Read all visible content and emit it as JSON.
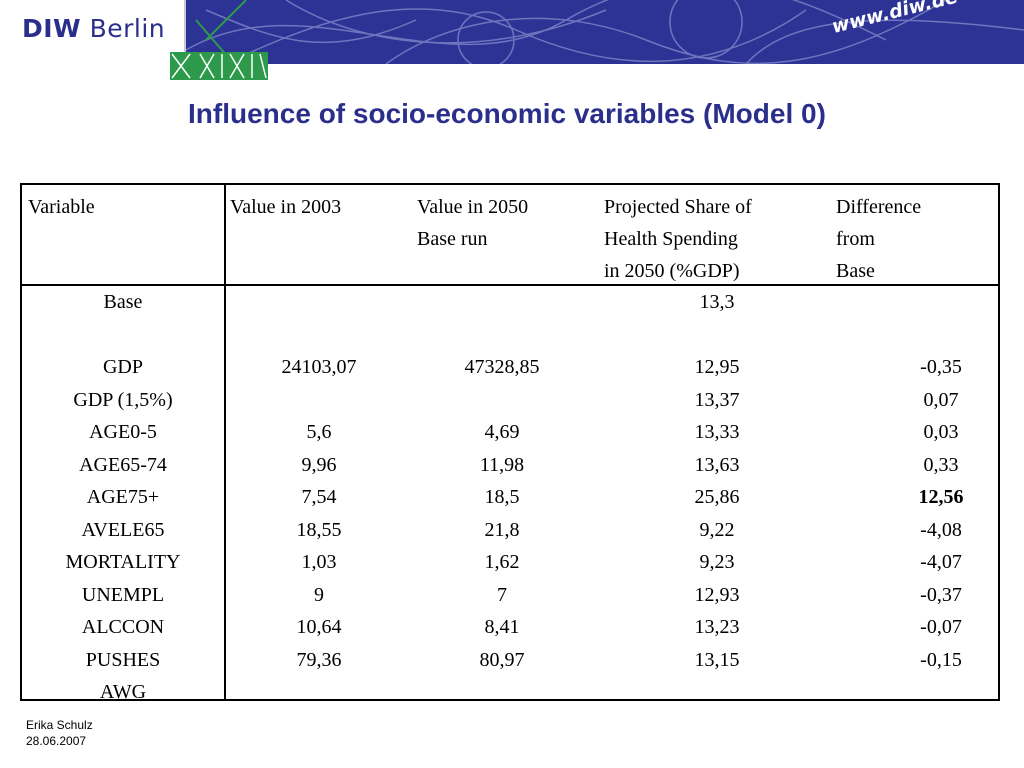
{
  "header": {
    "logo_bold": "DIW",
    "logo_rest": " Berlin",
    "url": "www.diw.de",
    "banner_color": "#2d3395",
    "green_color": "#2d9a4b"
  },
  "title": "Influence of socio-economic variables (Model 0)",
  "table": {
    "columns": [
      [
        "Variable"
      ],
      [
        "Value in 2003"
      ],
      [
        "Value in 2050",
        "Base run"
      ],
      [
        "Projected Share of",
        "Health Spending",
        "in 2050 (%GDP)"
      ],
      [
        "Difference",
        "from",
        "Base"
      ]
    ],
    "rows": [
      {
        "variable": "Base",
        "v2003": "",
        "v2050": "",
        "share": "13,3",
        "diff": ""
      },
      {
        "variable": "",
        "v2003": "",
        "v2050": "",
        "share": "",
        "diff": ""
      },
      {
        "variable": "GDP",
        "v2003": "24103,07",
        "v2050": "47328,85",
        "share": "12,95",
        "diff": "-0,35"
      },
      {
        "variable": "GDP (1,5%)",
        "v2003": "",
        "v2050": "",
        "share": "13,37",
        "diff": "0,07"
      },
      {
        "variable": "AGE0-5",
        "v2003": "5,6",
        "v2050": "4,69",
        "share": "13,33",
        "diff": "0,03"
      },
      {
        "variable": "AGE65-74",
        "v2003": "9,96",
        "v2050": "11,98",
        "share": "13,63",
        "diff": "0,33"
      },
      {
        "variable": "AGE75+",
        "v2003": "7,54",
        "v2050": "18,5",
        "share": "25,86",
        "diff": "12,56",
        "diff_bold": true
      },
      {
        "variable": "AVELE65",
        "v2003": "18,55",
        "v2050": "21,8",
        "share": "9,22",
        "diff": "-4,08"
      },
      {
        "variable": "MORTALITY",
        "v2003": "1,03",
        "v2050": "1,62",
        "share": "9,23",
        "diff": "-4,07"
      },
      {
        "variable": "UNEMPL",
        "v2003": "9",
        "v2050": "7",
        "share": "12,93",
        "diff": "-0,37"
      },
      {
        "variable": "ALCCON",
        "v2003": "10,64",
        "v2050": "8,41",
        "share": "13,23",
        "diff": "-0,07"
      },
      {
        "variable": "PUSHES",
        "v2003": "79,36",
        "v2050": "80,97",
        "share": "13,15",
        "diff": "-0,15"
      },
      {
        "variable": "AWG",
        "v2003": "",
        "v2050": "",
        "share": "",
        "diff": ""
      }
    ]
  },
  "footer": {
    "author": "Erika Schulz",
    "date": "28.06.2007"
  }
}
